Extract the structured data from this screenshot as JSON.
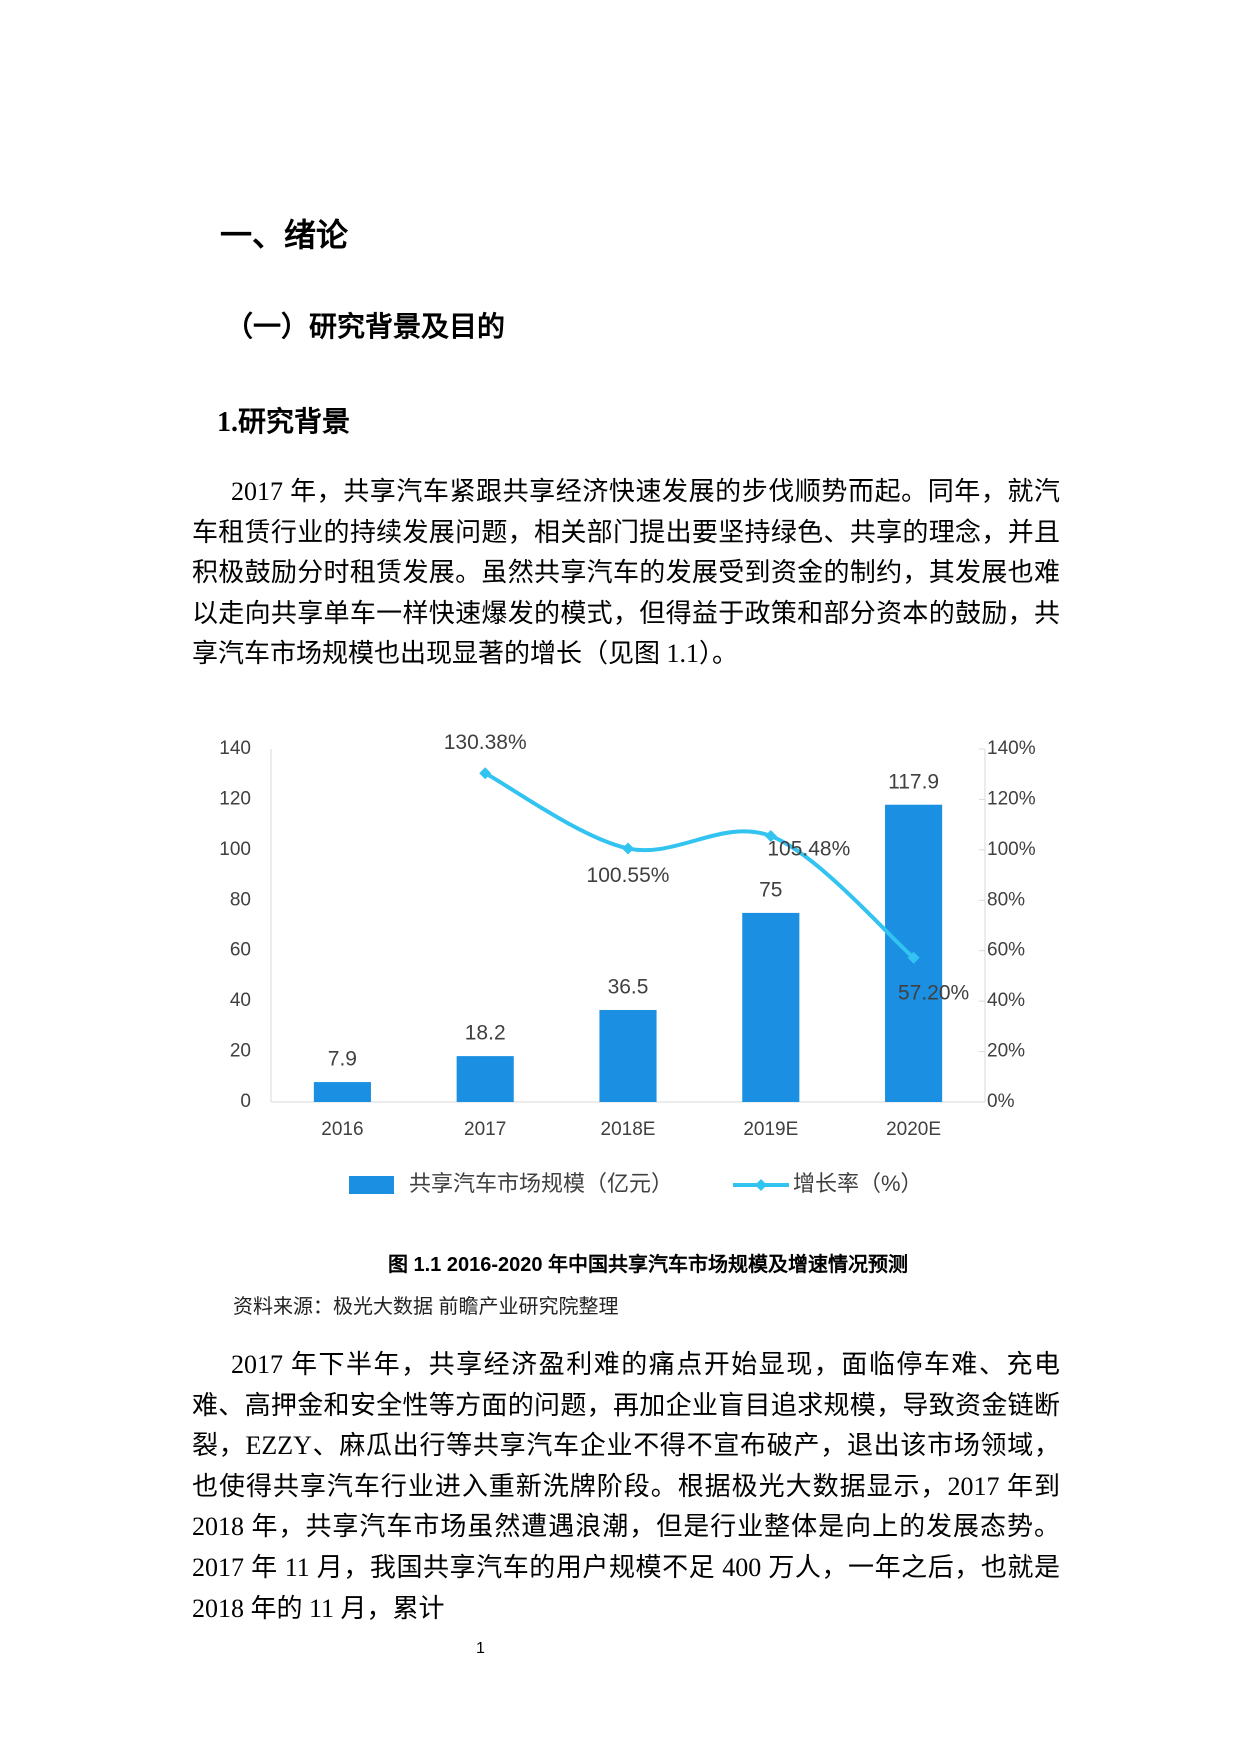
{
  "heading": "一、绪论",
  "section": "（一）研究背景及目的",
  "subsection": "1.研究背景",
  "paragraphs": [
    "2017 年，共享汽车紧跟共享经济快速发展的步伐顺势而起。同年，就汽车租赁行业的持续发展问题，相关部门提出要坚持绿色、共享的理念，并且积极鼓励分时租赁发展。虽然共享汽车的发展受到资金的制约，其发展也难以走向共享单车一样快速爆发的模式，但得益于政策和部分资本的鼓励，共享汽车市场规模也出现显著的增长（见图 1.1）。",
    "2017 年下半年，共享经济盈利难的痛点开始显现，面临停车难、充电难、高押金和安全性等方面的问题，再加企业盲目追求规模，导致资金链断裂，EZZY、麻瓜出行等共享汽车企业不得不宣布破产，退出该市场领域，也使得共享汽车行业进入重新洗牌阶段。根据极光大数据显示，2017 年到 2018 年，共享汽车市场虽然遭遇浪潮，但是行业整体是向上的发展态势。2017 年 11 月，我国共享汽车的用户规模不足 400 万人，一年之后，也就是 2018 年的 11 月，累计"
  ],
  "chart_data": {
    "type": "bar",
    "categories": [
      "2016",
      "2017",
      "2018E",
      "2019E",
      "2020E"
    ],
    "series": [
      {
        "name": "共享汽车市场规模（亿元）",
        "type": "bar",
        "color": "#1b8fe2",
        "values": [
          7.9,
          18.2,
          36.5,
          75,
          117.9
        ]
      },
      {
        "name": "增长率（%）",
        "type": "line",
        "axis": "y2",
        "color": "#33c3f0",
        "values": [
          null,
          130.38,
          100.55,
          105.48,
          57.2
        ],
        "value_labels": [
          null,
          "130.38%",
          "100.55%",
          "105.48%",
          "57.20%"
        ]
      }
    ],
    "ylim": [
      0,
      140
    ],
    "yticks": [
      0,
      20,
      40,
      60,
      80,
      100,
      120,
      140
    ],
    "y2lim": [
      0,
      140
    ],
    "y2ticks": [
      {
        "value": 0,
        "label": "0%"
      },
      {
        "value": 20,
        "label": "20%"
      },
      {
        "value": 40,
        "label": "40%"
      },
      {
        "value": 60,
        "label": "60%"
      },
      {
        "value": 80,
        "label": "80%"
      },
      {
        "value": 100,
        "label": "100%"
      },
      {
        "value": 120,
        "label": "120%"
      },
      {
        "value": 140,
        "label": "140%"
      }
    ],
    "legend": "bottom"
  },
  "caption": "图 1.1  2016-2020 年中国共享汽车市场规模及增速情况预测",
  "source": "资料来源：极光大数据  前瞻产业研究院整理",
  "page_number": "1"
}
